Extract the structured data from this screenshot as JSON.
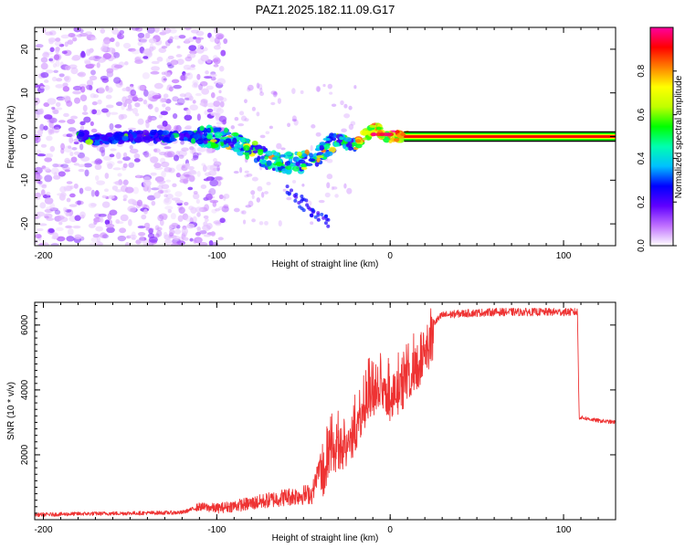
{
  "title": "PAZ1.2025.182.11.09.G17",
  "chart_data": [
    {
      "type": "heatmap",
      "xlabel": "Height of straight line (km)",
      "ylabel": "Frequency (Hz)",
      "xlim": [
        -205,
        130
      ],
      "ylim": [
        -25,
        25
      ],
      "xticks": [
        -200,
        -100,
        0,
        100
      ],
      "yticks": [
        -20,
        -10,
        0,
        10,
        20
      ],
      "colorbar": {
        "label": "Normalized spectral amplitude",
        "range": [
          0,
          1
        ],
        "ticks": [
          "0.0",
          "0.2",
          "0.4",
          "0.6",
          "0.8"
        ],
        "colormap": [
          "#ffffff",
          "#c070ff",
          "#6000ff",
          "#0000ff",
          "#00c0ff",
          "#00ffb0",
          "#00ff00",
          "#c0ff00",
          "#ffff00",
          "#ff8000",
          "#ff0000",
          "#ff00a0"
        ]
      },
      "ridge": {
        "x": [
          -175,
          -150,
          -125,
          -105,
          -90,
          -80,
          -70,
          -60,
          -50,
          -40,
          -35,
          -30,
          -20,
          -10,
          0,
          10,
          130
        ],
        "y": [
          -1,
          0,
          0,
          0,
          -1,
          -3,
          -5,
          -6,
          -6,
          -4,
          -2,
          -1,
          -2,
          2,
          0,
          0,
          0
        ]
      },
      "noise_region_x": [
        -205,
        -105
      ]
    },
    {
      "type": "line",
      "xlabel": "Height of straight line (km)",
      "ylabel": "SNR (10 * v/v)",
      "xlim": [
        -205,
        130
      ],
      "ylim": [
        0,
        6700
      ],
      "xticks": [
        -200,
        -100,
        0,
        100
      ],
      "yticks": [
        2000,
        4000,
        6000
      ],
      "color": "#ee3333",
      "series": [
        {
          "x": [
            -205,
            -180,
            -150,
            -120,
            -110,
            -100,
            -80,
            -60,
            -45,
            -38,
            -33,
            -28,
            -20,
            -12,
            -5,
            0,
            10,
            20,
            30,
            40,
            60,
            80,
            100,
            108,
            109,
            110,
            120,
            130
          ],
          "y": [
            150,
            180,
            200,
            220,
            400,
            350,
            500,
            700,
            800,
            2200,
            2800,
            2800,
            3400,
            4500,
            4800,
            4400,
            4900,
            5800,
            6300,
            6350,
            6400,
            6400,
            6400,
            6400,
            3150,
            3150,
            3050,
            3000
          ]
        }
      ]
    }
  ]
}
